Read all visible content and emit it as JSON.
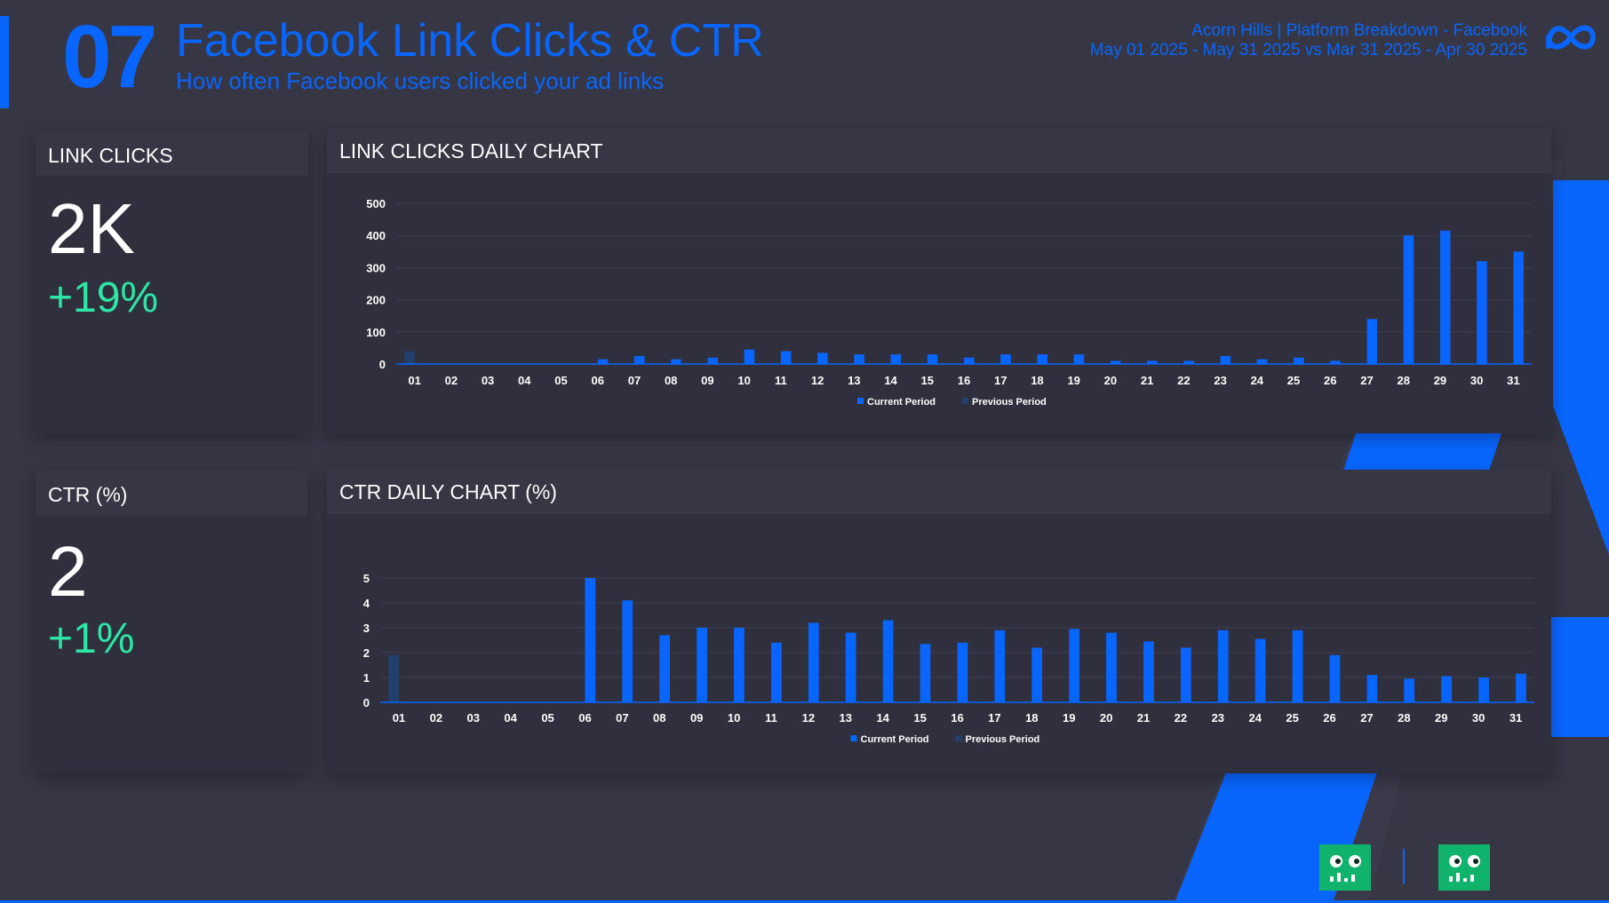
{
  "header": {
    "number": "07",
    "title": "Facebook Link Clicks & CTR",
    "subtitle": "How often Facebook users clicked your ad links",
    "report": "Acorn Hills | Platform Breakdown - Facebook",
    "date_range": "May 01 2025 - May 31 2025 vs Mar 31 2025 - Apr 30 2025",
    "logo_icon": "meta-logo-icon"
  },
  "kpis": {
    "link_clicks": {
      "title": "LINK CLICKS",
      "value": "2K",
      "change": "+19%"
    },
    "ctr": {
      "title": "CTR (%)",
      "value": "2",
      "change": "+1%"
    }
  },
  "colors": {
    "current": "#0866ff",
    "previous": "#22406e",
    "positive": "#2ee6a4",
    "accent": "#0866ff",
    "card": "#2f2f3d",
    "background": "#363644"
  },
  "chart_data": [
    {
      "type": "bar",
      "title": "LINK CLICKS DAILY CHART",
      "categories": [
        "01",
        "02",
        "03",
        "04",
        "05",
        "06",
        "07",
        "08",
        "09",
        "10",
        "11",
        "12",
        "13",
        "14",
        "15",
        "16",
        "17",
        "18",
        "19",
        "20",
        "21",
        "22",
        "23",
        "24",
        "25",
        "26",
        "27",
        "28",
        "29",
        "30",
        "31"
      ],
      "ylim": [
        0,
        500
      ],
      "yticks": [
        0,
        100,
        200,
        300,
        400,
        500
      ],
      "series": [
        {
          "name": "Current Period",
          "values": [
            0,
            0,
            0,
            0,
            0,
            15,
            25,
            15,
            20,
            45,
            40,
            35,
            30,
            30,
            30,
            20,
            30,
            30,
            30,
            10,
            10,
            10,
            25,
            15,
            20,
            10,
            140,
            400,
            415,
            320,
            350
          ]
        },
        {
          "name": "Previous Period",
          "values": [
            40,
            0,
            0,
            0,
            0,
            0,
            0,
            0,
            0,
            0,
            0,
            0,
            0,
            0,
            0,
            0,
            0,
            0,
            0,
            0,
            0,
            0,
            0,
            0,
            0,
            0,
            0,
            0,
            0,
            0,
            0
          ]
        }
      ]
    },
    {
      "type": "bar",
      "title": "CTR DAILY CHART (%)",
      "categories": [
        "01",
        "02",
        "03",
        "04",
        "05",
        "06",
        "07",
        "08",
        "09",
        "10",
        "11",
        "12",
        "13",
        "14",
        "15",
        "16",
        "17",
        "18",
        "19",
        "20",
        "21",
        "22",
        "23",
        "24",
        "25",
        "26",
        "27",
        "28",
        "29",
        "30",
        "31"
      ],
      "ylim": [
        0,
        5
      ],
      "yticks": [
        0,
        1,
        2,
        3,
        4,
        5
      ],
      "series": [
        {
          "name": "Current Period",
          "values": [
            0,
            0,
            0,
            0,
            0,
            5.0,
            4.1,
            2.7,
            3.0,
            3.0,
            2.4,
            3.2,
            2.8,
            3.3,
            2.35,
            2.4,
            2.9,
            2.2,
            2.95,
            2.8,
            2.45,
            2.2,
            2.9,
            2.55,
            2.9,
            1.9,
            1.1,
            0.95,
            1.05,
            1.0,
            1.15
          ]
        },
        {
          "name": "Previous Period",
          "values": [
            1.9,
            0,
            0,
            0,
            0,
            0,
            0,
            0,
            0,
            0,
            0,
            0,
            0,
            0,
            0,
            0,
            0,
            0,
            0,
            0,
            0,
            0,
            0,
            0,
            0,
            0,
            0,
            0,
            0,
            0,
            0
          ]
        }
      ]
    }
  ]
}
